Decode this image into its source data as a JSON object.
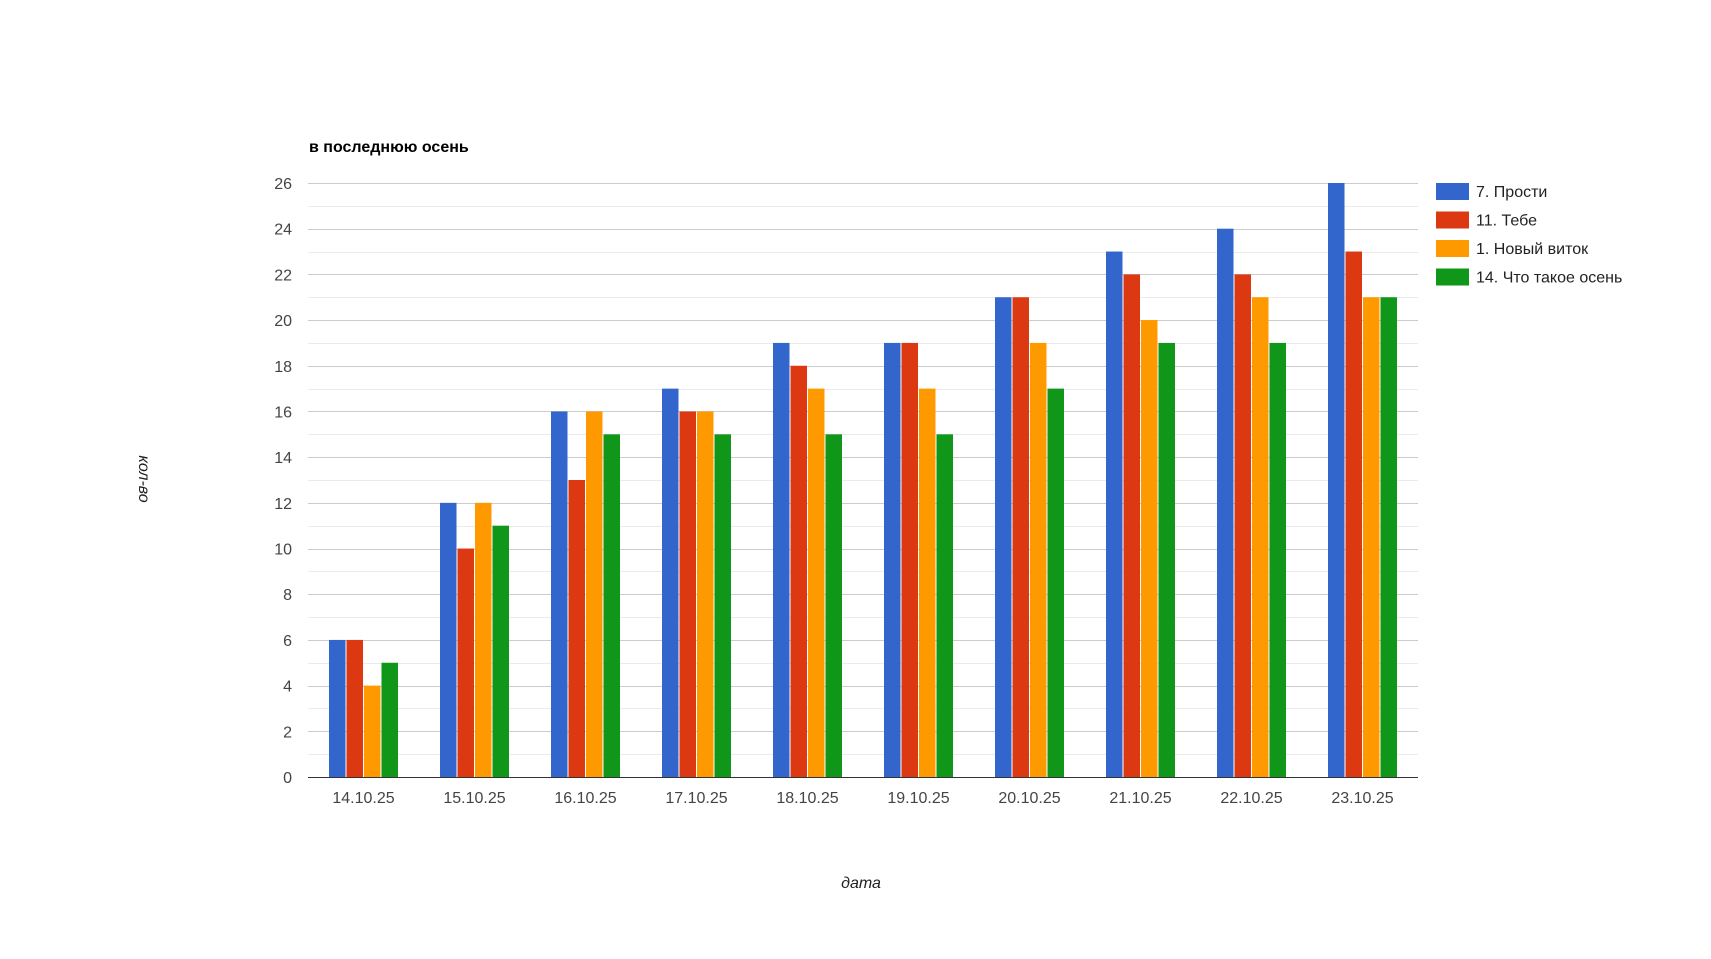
{
  "chart_data": {
    "type": "bar",
    "title": "в последнюю осень",
    "xlabel": "дата",
    "ylabel": "кол-во",
    "categories": [
      "14.10.25",
      "15.10.25",
      "16.10.25",
      "17.10.25",
      "18.10.25",
      "19.10.25",
      "20.10.25",
      "21.10.25",
      "22.10.25",
      "23.10.25"
    ],
    "series": [
      {
        "name": "7. Прости",
        "color": "#3366cc",
        "values": [
          6,
          12,
          16,
          17,
          19,
          19,
          21,
          23,
          24,
          26
        ]
      },
      {
        "name": "11. Тебе",
        "color": "#dc3912",
        "values": [
          6,
          10,
          13,
          16,
          18,
          19,
          21,
          22,
          22,
          23
        ]
      },
      {
        "name": "1. Новый виток",
        "color": "#ff9900",
        "values": [
          4,
          12,
          16,
          16,
          17,
          17,
          19,
          20,
          21,
          21
        ]
      },
      {
        "name": "14. Что такое осень",
        "color": "#109618",
        "values": [
          5,
          11,
          15,
          15,
          15,
          15,
          17,
          19,
          19,
          21
        ]
      }
    ],
    "yticks": [
      "0",
      "2",
      "4",
      "6",
      "8",
      "10",
      "12",
      "14",
      "16",
      "18",
      "20",
      "22",
      "24",
      "26"
    ],
    "ylim": [
      0,
      26
    ],
    "grid": true,
    "legend_position": "right"
  }
}
